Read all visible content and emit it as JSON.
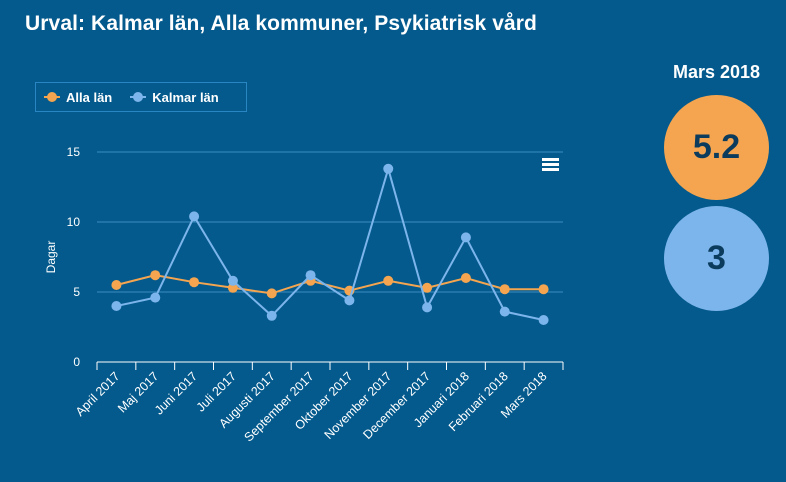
{
  "header": {
    "title": "Urval: Kalmar län, Alla kommuner, Psykiatrisk vård"
  },
  "side_panel": {
    "date_label": "Mars 2018",
    "values": [
      {
        "series": "Alla län",
        "value": "5.2",
        "color": "#f5a54f"
      },
      {
        "series": "Kalmar län",
        "value": "3",
        "color": "#7cb5ec"
      }
    ]
  },
  "chart_menu_icon": "hamburger-menu-icon",
  "chart_data": {
    "type": "line",
    "title": "",
    "xlabel": "",
    "ylabel": "Dagar",
    "ylim": [
      0,
      15
    ],
    "yticks": [
      0,
      5,
      10,
      15
    ],
    "grid": true,
    "legend_position": "top-left",
    "categories": [
      "April 2017",
      "Maj 2017",
      "Juni 2017",
      "Juli 2017",
      "Augusti 2017",
      "September 2017",
      "Oktober 2017",
      "November 2017",
      "December 2017",
      "Januari 2018",
      "Februari 2018",
      "Mars 2018"
    ],
    "series": [
      {
        "name": "Alla län",
        "color": "#f5a54f",
        "values": [
          5.5,
          6.2,
          5.7,
          5.3,
          4.9,
          5.8,
          5.1,
          5.8,
          5.3,
          6.0,
          5.2,
          5.2
        ]
      },
      {
        "name": "Kalmar län",
        "color": "#7cb5ec",
        "values": [
          4.0,
          4.6,
          10.4,
          5.8,
          3.3,
          6.2,
          4.4,
          13.8,
          3.9,
          8.9,
          3.6,
          3.0
        ]
      }
    ]
  }
}
